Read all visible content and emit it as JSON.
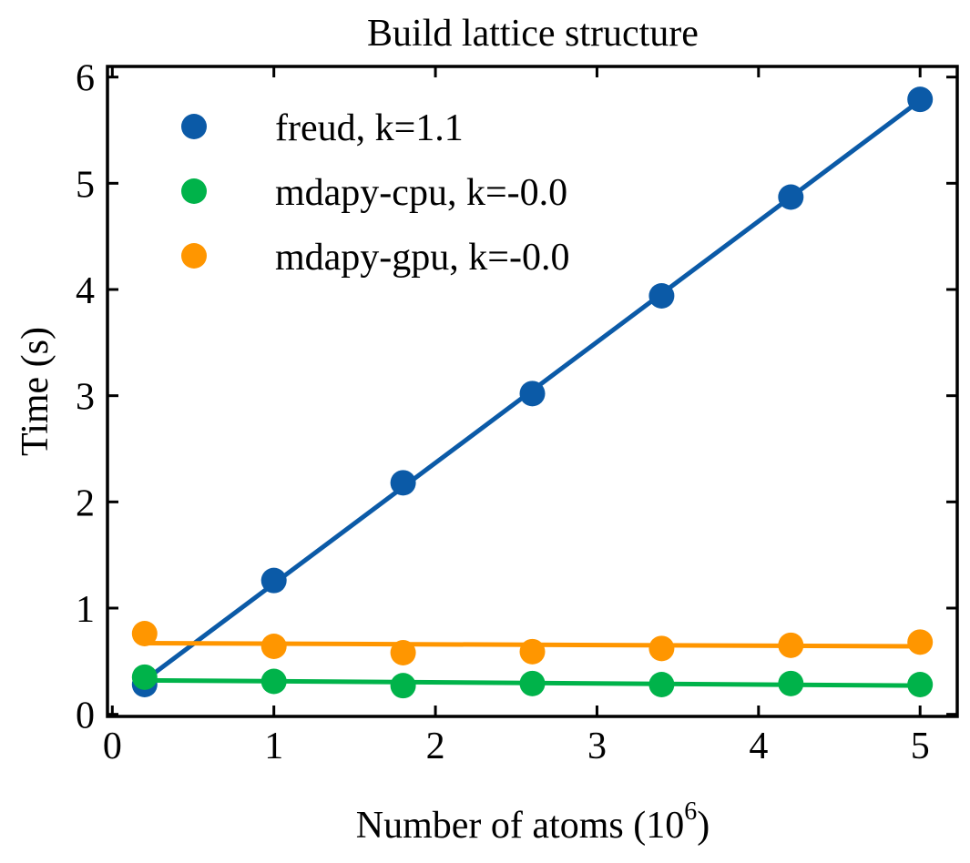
{
  "chart_data": {
    "type": "scatter",
    "title": "Build lattice structure",
    "xlabel": "Number of atoms (10",
    "xlabel_sup": "6",
    "xlabel_end": ")",
    "ylabel": "Time (s)",
    "xlim": [
      -0.03,
      5.23
    ],
    "ylim": [
      -0.02,
      6.1
    ],
    "xticks": [
      0,
      1,
      2,
      3,
      4,
      5
    ],
    "yticks": [
      0,
      1,
      2,
      3,
      4,
      5,
      6
    ],
    "legend_position": "upper-left",
    "grid": false,
    "series": [
      {
        "name": "freud, k=1.1",
        "color": "#0b5aa7",
        "x": [
          0.2,
          1.0,
          1.8,
          2.6,
          3.4,
          4.2,
          5.0
        ],
        "y": [
          0.28,
          1.26,
          2.18,
          3.02,
          3.94,
          4.87,
          5.79
        ],
        "fit": [
          [
            0.2,
            0.32
          ],
          [
            5.0,
            5.78
          ]
        ]
      },
      {
        "name": "mdapy-cpu, k=-0.0",
        "color": "#00b34a",
        "x": [
          0.2,
          1.0,
          1.8,
          2.6,
          3.4,
          4.2,
          5.0
        ],
        "y": [
          0.35,
          0.31,
          0.27,
          0.29,
          0.28,
          0.29,
          0.28
        ],
        "fit": [
          [
            0.2,
            0.32
          ],
          [
            5.0,
            0.27
          ]
        ]
      },
      {
        "name": "mdapy-gpu, k=-0.0",
        "color": "#ff9600",
        "x": [
          0.2,
          1.0,
          1.8,
          2.6,
          3.4,
          4.2,
          5.0
        ],
        "y": [
          0.76,
          0.64,
          0.58,
          0.59,
          0.62,
          0.65,
          0.68
        ],
        "fit": [
          [
            0.2,
            0.67
          ],
          [
            5.0,
            0.64
          ]
        ]
      }
    ]
  }
}
